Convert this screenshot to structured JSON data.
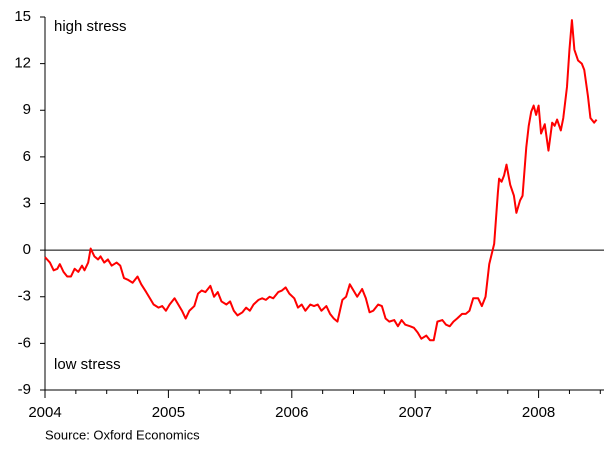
{
  "chart_data": {
    "type": "line",
    "annotations": [
      "high stress",
      "low stress"
    ],
    "source": "Source: Oxford Economics",
    "xlim": [
      2004,
      2008.53
    ],
    "xticks": [
      2004,
      2005,
      2006,
      2007,
      2008
    ],
    "ylim": [
      -9,
      15
    ],
    "yticks": [
      -9,
      -6,
      -3,
      0,
      3,
      6,
      9,
      12,
      15
    ],
    "series": [
      {
        "color": "#ff0000",
        "x": [
          2004.0,
          2004.04,
          2004.07,
          2004.1,
          2004.12,
          2004.15,
          2004.18,
          2004.21,
          2004.24,
          2004.27,
          2004.3,
          2004.32,
          2004.35,
          2004.37,
          2004.4,
          2004.43,
          2004.45,
          2004.48,
          2004.51,
          2004.54,
          2004.58,
          2004.61,
          2004.64,
          2004.67,
          2004.71,
          2004.75,
          2004.78,
          2004.82,
          2004.85,
          2004.88,
          2004.92,
          2004.95,
          2004.98,
          2005.01,
          2005.05,
          2005.08,
          2005.11,
          2005.14,
          2005.17,
          2005.21,
          2005.24,
          2005.27,
          2005.3,
          2005.34,
          2005.37,
          2005.4,
          2005.43,
          2005.47,
          2005.5,
          2005.53,
          2005.56,
          2005.6,
          2005.63,
          2005.66,
          2005.69,
          2005.73,
          2005.76,
          2005.79,
          2005.82,
          2005.85,
          2005.89,
          2005.92,
          2005.95,
          2005.98,
          2006.02,
          2006.05,
          2006.08,
          2006.11,
          2006.15,
          2006.18,
          2006.21,
          2006.24,
          2006.28,
          2006.31,
          2006.34,
          2006.37,
          2006.41,
          2006.44,
          2006.47,
          2006.5,
          2006.53,
          2006.57,
          2006.6,
          2006.63,
          2006.66,
          2006.7,
          2006.73,
          2006.76,
          2006.79,
          2006.83,
          2006.86,
          2006.89,
          2006.92,
          2006.96,
          2006.99,
          2007.02,
          2007.05,
          2007.09,
          2007.12,
          2007.15,
          2007.18,
          2007.22,
          2007.25,
          2007.28,
          2007.31,
          2007.34,
          2007.38,
          2007.41,
          2007.44,
          2007.47,
          2007.51,
          2007.54,
          2007.57,
          2007.6,
          2007.64,
          2007.67,
          2007.68,
          2007.7,
          2007.72,
          2007.74,
          2007.77,
          2007.8,
          2007.82,
          2007.85,
          2007.87,
          2007.9,
          2007.92,
          2007.94,
          2007.96,
          2007.98,
          2008.0,
          2008.02,
          2008.05,
          2008.08,
          2008.11,
          2008.13,
          2008.15,
          2008.18,
          2008.2,
          2008.23,
          2008.25,
          2008.27,
          2008.29,
          2008.32,
          2008.35,
          2008.37,
          2008.4,
          2008.42,
          2008.45,
          2008.47
        ],
        "values": [
          -0.45,
          -0.8,
          -1.3,
          -1.2,
          -0.9,
          -1.4,
          -1.7,
          -1.7,
          -1.2,
          -1.4,
          -1.0,
          -1.3,
          -0.8,
          0.1,
          -0.4,
          -0.6,
          -0.4,
          -0.8,
          -0.6,
          -1.0,
          -0.8,
          -1.0,
          -1.8,
          -1.9,
          -2.1,
          -1.7,
          -2.2,
          -2.7,
          -3.1,
          -3.5,
          -3.7,
          -3.6,
          -3.9,
          -3.5,
          -3.1,
          -3.5,
          -3.9,
          -4.4,
          -3.9,
          -3.6,
          -2.8,
          -2.6,
          -2.7,
          -2.3,
          -3.0,
          -2.7,
          -3.3,
          -3.5,
          -3.3,
          -3.9,
          -4.2,
          -4.0,
          -3.7,
          -3.9,
          -3.5,
          -3.2,
          -3.1,
          -3.2,
          -3.0,
          -3.1,
          -2.7,
          -2.6,
          -2.4,
          -2.8,
          -3.1,
          -3.7,
          -3.5,
          -3.9,
          -3.5,
          -3.6,
          -3.5,
          -3.9,
          -3.6,
          -4.1,
          -4.4,
          -4.6,
          -3.2,
          -3.0,
          -2.2,
          -2.6,
          -3.0,
          -2.5,
          -3.1,
          -4.0,
          -3.9,
          -3.5,
          -3.6,
          -4.4,
          -4.6,
          -4.5,
          -4.9,
          -4.5,
          -4.8,
          -4.9,
          -5.0,
          -5.3,
          -5.7,
          -5.5,
          -5.8,
          -5.8,
          -4.6,
          -4.5,
          -4.8,
          -4.9,
          -4.6,
          -4.4,
          -4.1,
          -4.1,
          -3.9,
          -3.1,
          -3.1,
          -3.6,
          -3.0,
          -0.9,
          0.4,
          3.7,
          4.6,
          4.4,
          4.8,
          5.5,
          4.2,
          3.5,
          2.4,
          3.2,
          3.5,
          6.6,
          8.0,
          8.9,
          9.3,
          8.7,
          9.3,
          7.5,
          8.1,
          6.4,
          8.2,
          8.0,
          8.4,
          7.7,
          8.5,
          10.5,
          12.9,
          14.8,
          12.9,
          12.2,
          12.0,
          11.6,
          9.9,
          8.5,
          8.2,
          8.4
        ]
      }
    ]
  }
}
